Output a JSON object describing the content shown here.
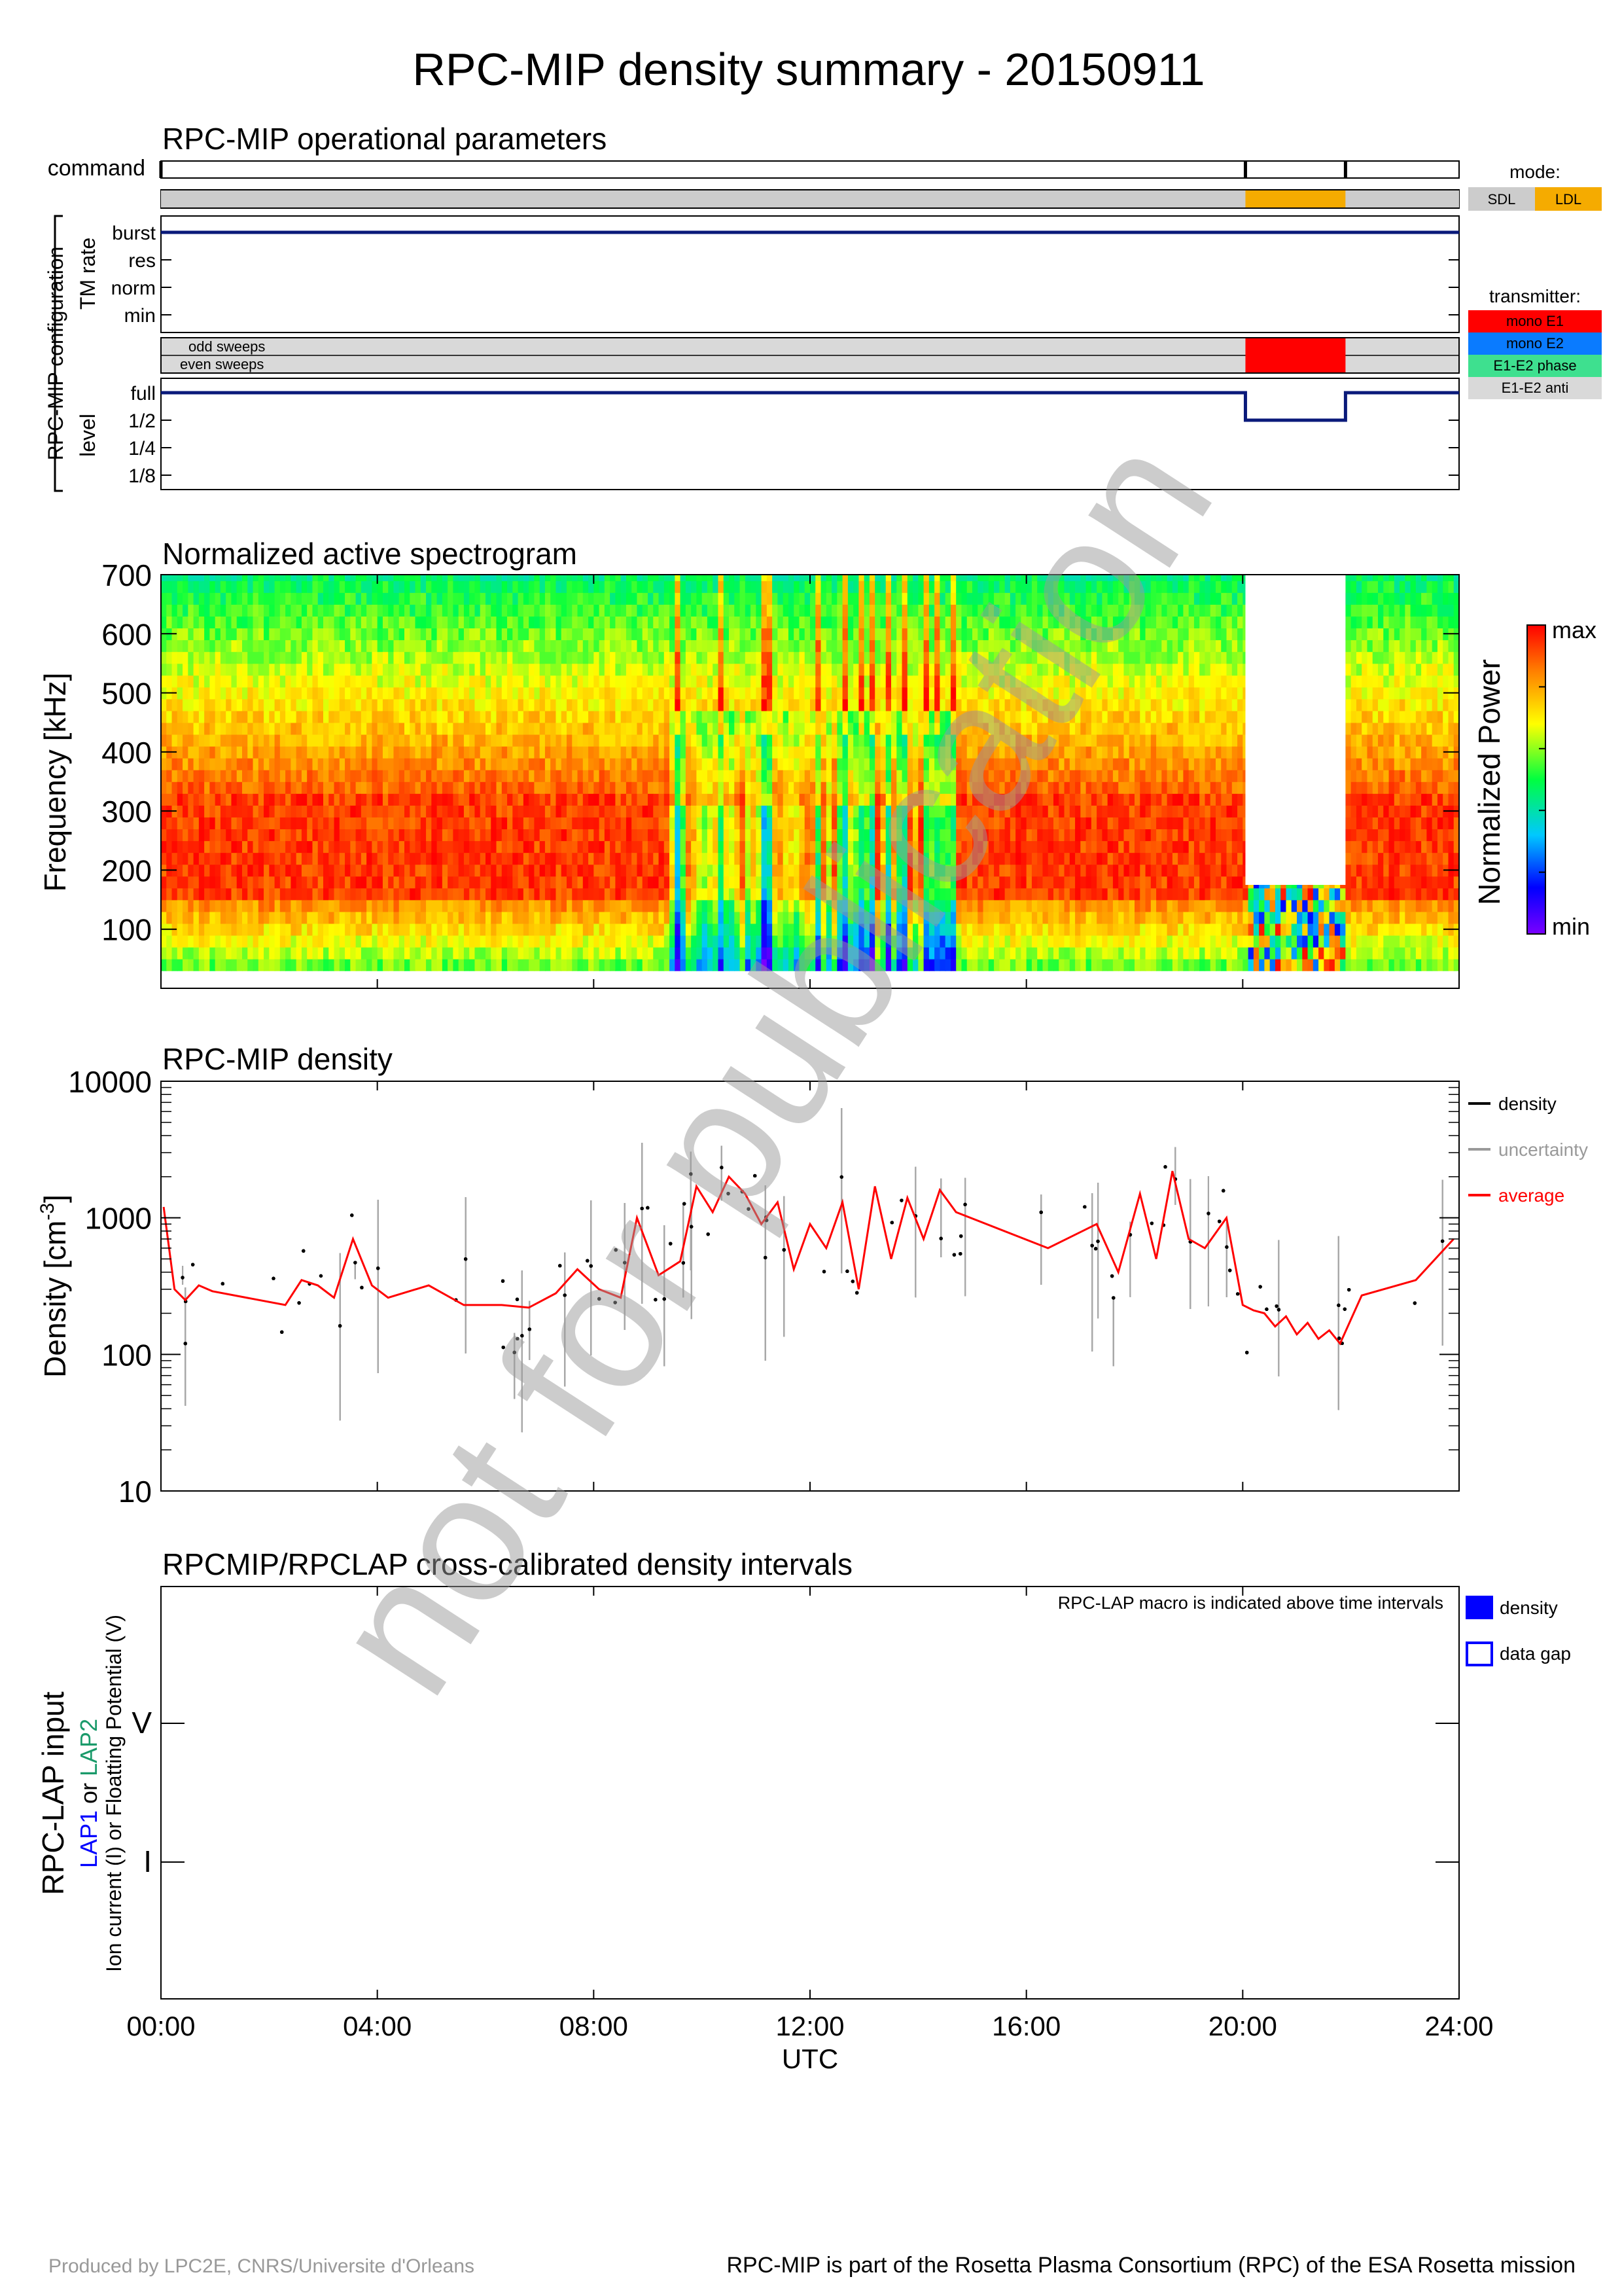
{
  "title": "RPC-MIP density summary - 20150911",
  "watermark": "not for publication",
  "footer": {
    "left": "Produced by LPC2E, CNRS/Universite d'Orleans",
    "right": "RPC-MIP is part of the Rosetta Plasma Consortium (RPC) of the ESA Rosetta mission"
  },
  "time_axis": {
    "ticks": [
      "00:00",
      "04:00",
      "08:00",
      "12:00",
      "16:00",
      "20:00",
      "24:00"
    ],
    "tick_hours": [
      0,
      4,
      8,
      12,
      16,
      20,
      24
    ],
    "label": "UTC"
  },
  "operational": {
    "title": "RPC-MIP operational parameters",
    "command_label": "command",
    "command_marks_hours": [
      0,
      20.05,
      21.9
    ],
    "group_label": "RPC-MIP configuration",
    "tm_label": "TM rate",
    "tm_levels": [
      "burst",
      "res",
      "norm",
      "min"
    ],
    "tm_rate_value": "burst",
    "sweeps": [
      "odd sweeps",
      "even sweeps"
    ],
    "level_label": "level",
    "levels": [
      "full",
      "1/2",
      "1/4",
      "1/8"
    ],
    "level_segments": [
      {
        "start": 0,
        "end": 20.05,
        "level": "full"
      },
      {
        "start": 20.05,
        "end": 21.9,
        "level": "1/2"
      },
      {
        "start": 21.9,
        "end": 24,
        "level": "full"
      }
    ],
    "mode_title": "mode:",
    "modes": [
      {
        "label": "SDL",
        "color": "#cccccc"
      },
      {
        "label": "LDL",
        "color": "#f5ab00"
      }
    ],
    "mode_segments": [
      {
        "start": 0,
        "end": 20.05,
        "mode": "SDL"
      },
      {
        "start": 20.05,
        "end": 21.9,
        "mode": "LDL"
      },
      {
        "start": 21.9,
        "end": 24,
        "mode": "SDL"
      }
    ],
    "transmitter_title": "transmitter:",
    "transmitters": [
      {
        "label": "mono E1",
        "color": "#ff0000"
      },
      {
        "label": "mono E2",
        "color": "#0a7bff"
      },
      {
        "label": "E1-E2 phase",
        "color": "#3ee08f"
      },
      {
        "label": "E1-E2 anti",
        "color": "#d9d9d9"
      }
    ],
    "transmitter_segments": [
      {
        "start": 0,
        "end": 20.05,
        "tx": "E1-E2 anti"
      },
      {
        "start": 20.05,
        "end": 21.9,
        "tx": "mono E1"
      },
      {
        "start": 21.9,
        "end": 24,
        "tx": "E1-E2 anti"
      }
    ]
  },
  "spectrogram": {
    "title": "Normalized active spectrogram",
    "ylabel": "Frequency [kHz]",
    "yticks": [
      "100",
      "200",
      "300",
      "400",
      "500",
      "600",
      "700"
    ],
    "ytick_values": [
      100,
      200,
      300,
      400,
      500,
      600,
      700
    ],
    "ylim": [
      0,
      700
    ],
    "colorbar_label": "Normalized Power",
    "colorbar_max": "max",
    "colorbar_min": "min",
    "gap_interval": [
      20.05,
      21.9
    ],
    "gap_fmax": 175
  },
  "density": {
    "title": "RPC-MIP density",
    "ylabel": "Density [cm",
    "ylabel_sup": "-3",
    "ylabel_end": "]",
    "yticks": [
      "10",
      "100",
      "1000",
      "10000"
    ],
    "ylim": [
      10,
      10000
    ],
    "legend": [
      {
        "label": "density",
        "color": "#000000"
      },
      {
        "label": "uncertainty",
        "color": "#999999"
      },
      {
        "label": "average",
        "color": "#ff0000"
      }
    ]
  },
  "chart_data": [
    {
      "type": "line",
      "title": "RPC-MIP density",
      "xlabel": "UTC",
      "ylabel": "Density [cm-3]",
      "yscale": "log",
      "xlim": [
        0,
        24
      ],
      "ylim": [
        10,
        10000
      ],
      "grid": false,
      "legend_position": "right",
      "series": [
        {
          "name": "average",
          "x": [
            0.05,
            0.25,
            0.45,
            0.7,
            0.95,
            2.3,
            2.6,
            2.9,
            3.2,
            3.55,
            3.9,
            4.2,
            4.95,
            5.6,
            6.3,
            6.8,
            7.3,
            7.7,
            8.1,
            8.5,
            8.8,
            9.2,
            9.6,
            9.9,
            10.2,
            10.5,
            10.8,
            11.1,
            11.4,
            11.7,
            12.0,
            12.3,
            12.6,
            12.9,
            13.2,
            13.5,
            13.8,
            14.1,
            14.4,
            14.7,
            16.4,
            17.3,
            17.7,
            18.1,
            18.4,
            18.7,
            19.0,
            19.3,
            19.7,
            20.0,
            20.2,
            20.4,
            20.6,
            20.8,
            21.0,
            21.2,
            21.4,
            21.6,
            21.8,
            22.2,
            23.2,
            23.9
          ],
          "y": [
            1200,
            300,
            250,
            320,
            290,
            230,
            350,
            320,
            260,
            700,
            320,
            260,
            320,
            230,
            230,
            220,
            280,
            420,
            300,
            260,
            1000,
            380,
            480,
            1700,
            1100,
            2000,
            1500,
            900,
            1300,
            420,
            900,
            600,
            1300,
            300,
            1700,
            500,
            1400,
            700,
            1600,
            1100,
            600,
            900,
            400,
            1500,
            500,
            2200,
            700,
            600,
            1000,
            230,
            210,
            200,
            160,
            190,
            140,
            170,
            130,
            150,
            120,
            270,
            350,
            700
          ]
        }
      ]
    },
    {
      "type": "heatmap",
      "title": "Normalized active spectrogram",
      "xlabel": "UTC",
      "ylabel": "Frequency [kHz]",
      "xlim": [
        0,
        24
      ],
      "ylim": [
        0,
        700
      ],
      "colorbar": [
        "min",
        "max"
      ],
      "peak_band_khz": [
        150,
        320
      ]
    },
    {
      "type": "table",
      "title": "RPCMIP/RPCLAP cross-calibrated density intervals",
      "ylabel": "RPC-LAP input",
      "rows": [
        "V",
        "I"
      ],
      "xlim": [
        0,
        24
      ],
      "intervals": []
    }
  ],
  "lap": {
    "title": "RPCMIP/RPCLAP cross-calibrated density intervals",
    "note": "RPC-LAP macro is indicated above time intervals",
    "ylabel_main": "RPC-LAP input",
    "ylabel_lap1": "LAP1",
    "ylabel_or": " or ",
    "ylabel_lap2": "LAP2",
    "ylabel_sub": "Ion current (I) or Floatting Potential (V)",
    "rows": [
      "V",
      "I"
    ],
    "legend": [
      {
        "label": "density",
        "style": "filled",
        "color": "#0000ff"
      },
      {
        "label": "data gap",
        "style": "outline",
        "color": "#0000ff"
      }
    ]
  }
}
